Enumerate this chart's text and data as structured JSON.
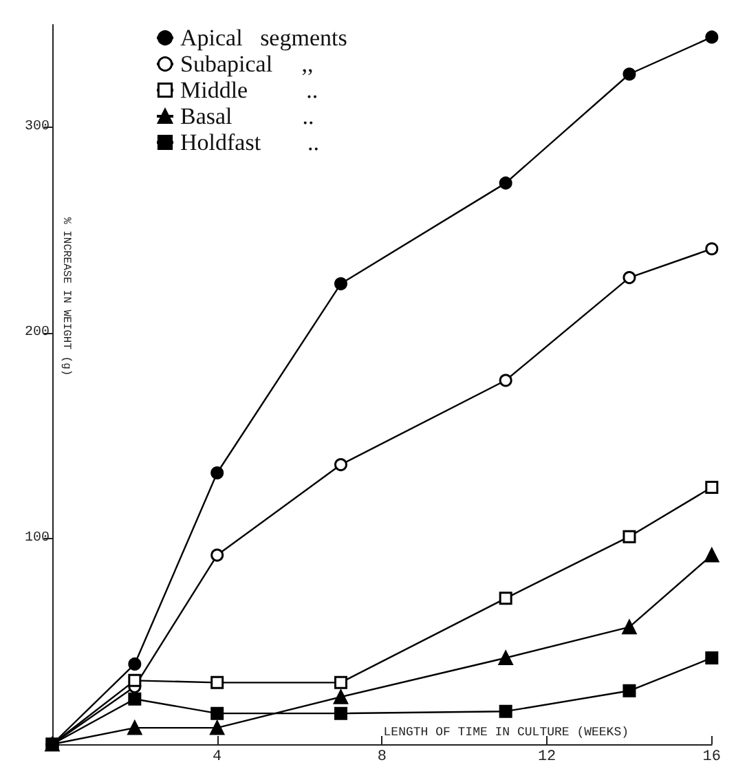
{
  "chart_data": {
    "type": "line",
    "xlabel": "LENGTH OF TIME IN CULTURE (WEEKS)",
    "ylabel": "% INCREASE IN WEIGHT (g)",
    "xlim": [
      0,
      16
    ],
    "xticks": [
      4,
      8,
      12,
      16
    ],
    "ylim": [
      0,
      350
    ],
    "yticks": [
      100,
      200,
      300
    ],
    "grid": false,
    "legend": "top left",
    "line_style": "solid",
    "series": [
      {
        "name": "Apical   segments",
        "color": "#000000",
        "marker": "circle",
        "x": [
          0,
          2,
          4,
          7,
          11,
          14,
          16
        ],
        "values": [
          0,
          39,
          132,
          224,
          273,
          326,
          344
        ]
      },
      {
        "name": "Subapical     ,,",
        "color": "#ffffff",
        "marker": "circle",
        "x": [
          0,
          2,
          4,
          7,
          11,
          14,
          16
        ],
        "values": [
          0,
          28,
          92,
          136,
          177,
          227,
          241
        ]
      },
      {
        "name": "Middle          ..",
        "color": "#ffffff",
        "marker": "square",
        "x": [
          0,
          2,
          4,
          7,
          11,
          14,
          16
        ],
        "values": [
          0,
          31,
          30,
          30,
          71,
          101,
          125
        ]
      },
      {
        "name": "Basal            ..",
        "color": "#000000",
        "marker": "triangle",
        "x": [
          0,
          2,
          4,
          7,
          11,
          14,
          16
        ],
        "values": [
          0,
          8,
          8,
          23,
          42,
          57,
          92
        ]
      },
      {
        "name": "Holdfast        ..",
        "color": "#000000",
        "marker": "square",
        "x": [
          0,
          2,
          4,
          7,
          11,
          14,
          16
        ],
        "values": [
          0,
          22,
          15,
          15,
          16,
          26,
          42
        ]
      }
    ]
  }
}
